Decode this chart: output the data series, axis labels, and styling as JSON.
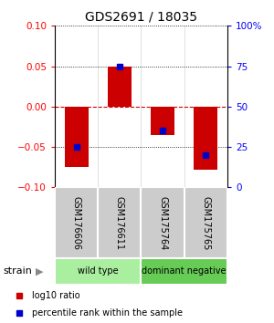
{
  "title": "GDS2691 / 18035",
  "samples": [
    "GSM176606",
    "GSM176611",
    "GSM175764",
    "GSM175765"
  ],
  "log10_ratio": [
    -0.075,
    0.05,
    -0.035,
    -0.078
  ],
  "percentile_rank": [
    25,
    75,
    35,
    20
  ],
  "ylim_left": [
    -0.1,
    0.1
  ],
  "ylim_right": [
    0,
    100
  ],
  "yticks_left": [
    -0.1,
    -0.05,
    0,
    0.05,
    0.1
  ],
  "yticks_right": [
    0,
    25,
    50,
    75,
    100
  ],
  "ytick_labels_right": [
    "0",
    "25",
    "50",
    "75",
    "100%"
  ],
  "bar_color": "#cc0000",
  "dot_color": "#0000cc",
  "zero_line_color": "#cc0000",
  "groups": [
    {
      "label": "wild type",
      "cols": [
        0,
        1
      ],
      "color": "#aaeea0"
    },
    {
      "label": "dominant negative",
      "cols": [
        2,
        3
      ],
      "color": "#66cc55"
    }
  ],
  "legend_items": [
    {
      "color": "#cc0000",
      "label": "log10 ratio"
    },
    {
      "color": "#0000cc",
      "label": "percentile rank within the sample"
    }
  ],
  "bar_width": 0.55,
  "strain_label": "strain"
}
